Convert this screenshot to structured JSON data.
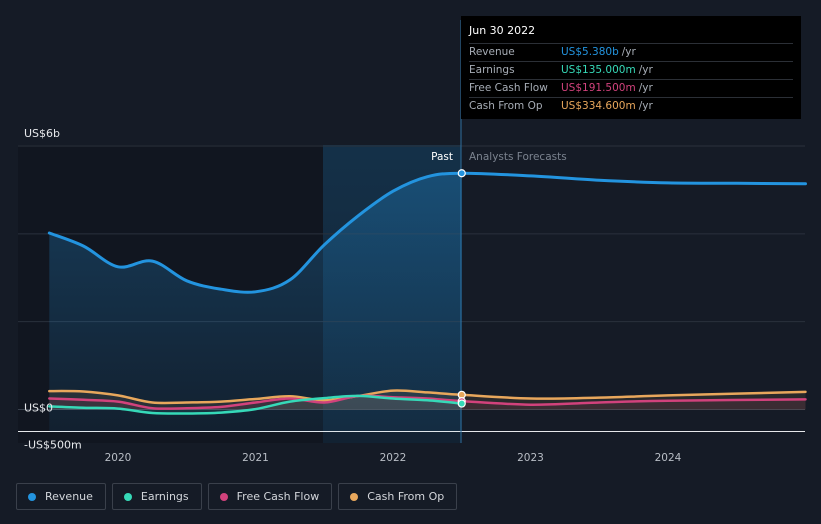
{
  "chart_data": {
    "type": "line",
    "y_axis": {
      "labels": [
        "US$6b",
        "US$0",
        "-US$500m"
      ],
      "ylim": [
        -500,
        6000
      ],
      "unit": "US$m"
    },
    "x_axis": {
      "ticks": [
        "2020",
        "2021",
        "2022",
        "2023",
        "2024"
      ]
    },
    "regions": {
      "past_label": "Past",
      "forecast_label": "Analysts Forecasts"
    },
    "series": [
      {
        "name": "Revenue",
        "color": "#2394df",
        "points": [
          [
            2019.5,
            4020
          ],
          [
            2019.75,
            3720
          ],
          [
            2020.0,
            3250
          ],
          [
            2020.25,
            3380
          ],
          [
            2020.5,
            2930
          ],
          [
            2020.75,
            2740
          ],
          [
            2021.0,
            2680
          ],
          [
            2021.25,
            2950
          ],
          [
            2021.5,
            3750
          ],
          [
            2021.75,
            4420
          ],
          [
            2022.0,
            4970
          ],
          [
            2022.25,
            5300
          ],
          [
            2022.5,
            5380
          ],
          [
            2023.0,
            5320
          ],
          [
            2023.5,
            5220
          ],
          [
            2024.0,
            5160
          ],
          [
            2024.5,
            5150
          ],
          [
            2025.0,
            5140
          ]
        ]
      },
      {
        "name": "Earnings",
        "color": "#36d9b8",
        "points": [
          [
            2019.5,
            70
          ],
          [
            2019.75,
            40
          ],
          [
            2020.0,
            20
          ],
          [
            2020.25,
            -80
          ],
          [
            2020.5,
            -90
          ],
          [
            2020.75,
            -70
          ],
          [
            2021.0,
            10
          ],
          [
            2021.25,
            180
          ],
          [
            2021.5,
            260
          ],
          [
            2021.75,
            310
          ],
          [
            2022.0,
            250
          ],
          [
            2022.25,
            210
          ],
          [
            2022.5,
            135
          ]
        ]
      },
      {
        "name": "Free Cash Flow",
        "color": "#d1427c",
        "points": [
          [
            2019.5,
            250
          ],
          [
            2019.75,
            220
          ],
          [
            2020.0,
            180
          ],
          [
            2020.25,
            30
          ],
          [
            2020.5,
            30
          ],
          [
            2020.75,
            60
          ],
          [
            2021.0,
            160
          ],
          [
            2021.25,
            250
          ],
          [
            2021.5,
            160
          ],
          [
            2021.75,
            310
          ],
          [
            2022.0,
            280
          ],
          [
            2022.25,
            250
          ],
          [
            2022.5,
            191.5
          ],
          [
            2023.0,
            110
          ],
          [
            2023.5,
            160
          ],
          [
            2024.0,
            200
          ],
          [
            2025.0,
            230
          ]
        ]
      },
      {
        "name": "Cash From Op",
        "color": "#e8a75c",
        "points": [
          [
            2019.5,
            420
          ],
          [
            2019.75,
            410
          ],
          [
            2020.0,
            320
          ],
          [
            2020.25,
            160
          ],
          [
            2020.5,
            160
          ],
          [
            2020.75,
            180
          ],
          [
            2021.0,
            240
          ],
          [
            2021.25,
            300
          ],
          [
            2021.5,
            210
          ],
          [
            2021.75,
            310
          ],
          [
            2022.0,
            430
          ],
          [
            2022.25,
            390
          ],
          [
            2022.5,
            334.6
          ],
          [
            2023.0,
            250
          ],
          [
            2023.5,
            270
          ],
          [
            2024.0,
            320
          ],
          [
            2025.0,
            400
          ]
        ]
      }
    ]
  },
  "tooltip": {
    "date": "Jun 30 2022",
    "rows": [
      {
        "label": "Revenue",
        "value": "US$5.380b",
        "unit": "/yr",
        "color": "#2394df"
      },
      {
        "label": "Earnings",
        "value": "US$135.000m",
        "unit": "/yr",
        "color": "#36d9b8"
      },
      {
        "label": "Free Cash Flow",
        "value": "US$191.500m",
        "unit": "/yr",
        "color": "#d1427c"
      },
      {
        "label": "Cash From Op",
        "value": "US$334.600m",
        "unit": "/yr",
        "color": "#e8a75c"
      }
    ]
  },
  "legend": [
    {
      "label": "Revenue",
      "color": "#2394df"
    },
    {
      "label": "Earnings",
      "color": "#36d9b8"
    },
    {
      "label": "Free Cash Flow",
      "color": "#d1427c"
    },
    {
      "label": "Cash From Op",
      "color": "#e8a75c"
    }
  ]
}
